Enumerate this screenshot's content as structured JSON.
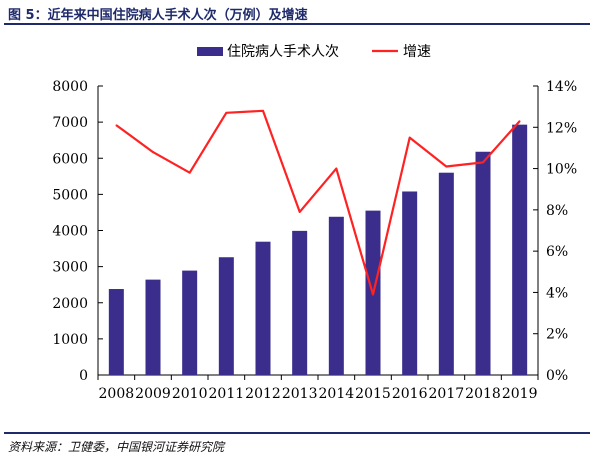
{
  "header": {
    "figure_title": "图 5：近年来中国住院病人手术人次（万例）及增速"
  },
  "footer": {
    "source": "资料来源：卫健委，中国银河证券研究院"
  },
  "chart_data": {
    "type": "bar",
    "categories": [
      "2008",
      "2009",
      "2010",
      "2011",
      "2012",
      "2013",
      "2014",
      "2015",
      "2016",
      "2017",
      "2018",
      "2019"
    ],
    "series": [
      {
        "name": "住院病人手术人次",
        "type": "bar",
        "axis": "left",
        "color": "#3a2d8c",
        "values": [
          2380,
          2640,
          2890,
          3260,
          3690,
          3990,
          4380,
          4550,
          5080,
          5600,
          6180,
          6930
        ]
      },
      {
        "name": "增速",
        "type": "line",
        "axis": "right",
        "color": "#ff2222",
        "values": [
          12.1,
          10.8,
          9.8,
          12.7,
          12.8,
          7.9,
          10.0,
          3.9,
          11.5,
          10.1,
          10.3,
          12.3
        ]
      }
    ],
    "ylim_left": [
      0,
      8000
    ],
    "yticks_left": [
      "0",
      "1000",
      "2000",
      "3000",
      "4000",
      "5000",
      "6000",
      "7000",
      "8000"
    ],
    "ylim_right": [
      0,
      14
    ],
    "yticks_right": [
      "0%",
      "2%",
      "4%",
      "6%",
      "8%",
      "10%",
      "12%",
      "14%"
    ],
    "legend_position": "top-center",
    "grid": false
  }
}
